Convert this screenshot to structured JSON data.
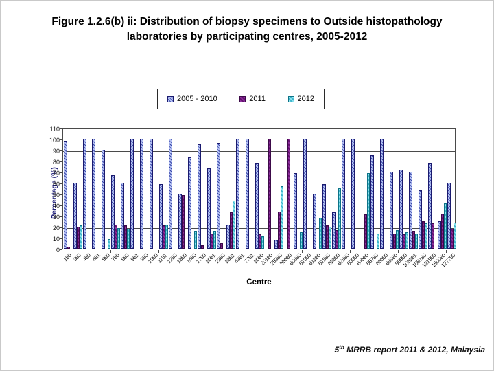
{
  "title": "Figure 1.2.6(b) ii: Distribution of biopsy specimens to Outside histopathology laboratories by participating centres, 2005-2012",
  "footer": {
    "prefix": "5",
    "sup": "th",
    "rest": " MRRB report 2011 & 2012, Malaysia"
  },
  "colors": {
    "series_2005_2010_light": "#b6c2f4",
    "series_2005_2010_dark": "#3a49a8",
    "series_2011": "#8d2f9c",
    "series_2012": "#8fe4f0",
    "axis": "#4a4a4a",
    "ylabel_text": "#1f1f7a"
  },
  "chart_data": {
    "type": "bar",
    "title": "Figure 1.2.6(b) ii: Distribution of biopsy specimens to Outside histopathology laboratories by participating centres, 2005-2012",
    "xlabel": "Centre",
    "ylabel": "Percentage (%)",
    "ylim": [
      0,
      110
    ],
    "ytick_step": 10,
    "gridlines_at": [
      20,
      90
    ],
    "grid": "partial-horizontal",
    "legend_position": "top-center-boxed",
    "categories": [
      "180",
      "380",
      "480",
      "481",
      "580",
      "780",
      "880",
      "981",
      "980",
      "1080",
      "1161",
      "1280",
      "1380",
      "1480",
      "1780",
      "2081",
      "2380",
      "2381",
      "4381",
      "7781",
      "2080",
      "20180",
      "25380",
      "55680",
      "60680",
      "61080",
      "61280",
      "61680",
      "62380",
      "62680",
      "63080",
      "64580",
      "65780",
      "66680",
      "66980",
      "96580",
      "106281",
      "108180",
      "121580",
      "150080",
      "127780"
    ],
    "series": [
      {
        "name": "2005 - 2010",
        "values": [
          98,
          60,
          100,
          100,
          90,
          67,
          60,
          100,
          100,
          100,
          59,
          100,
          50,
          83,
          95,
          73,
          96,
          22,
          100,
          100,
          78,
          0,
          8,
          0,
          69,
          100,
          50,
          59,
          33,
          100,
          100,
          0,
          85,
          100,
          70,
          72,
          70,
          53,
          78,
          25,
          60
        ]
      },
      {
        "name": "2011",
        "values": [
          2,
          20,
          0,
          0,
          0,
          22,
          21,
          0,
          0,
          0,
          21,
          0,
          49,
          0,
          3,
          14,
          5,
          33,
          0,
          0,
          13,
          100,
          34,
          100,
          0,
          0,
          0,
          21,
          17,
          0,
          0,
          31,
          0,
          0,
          14,
          13,
          16,
          25,
          23,
          32,
          18
        ]
      },
      {
        "name": "2012",
        "values": [
          0,
          21,
          0,
          0,
          9,
          19,
          18,
          0,
          0,
          0,
          22,
          0,
          0,
          16,
          0,
          16,
          0,
          44,
          0,
          0,
          11,
          0,
          57,
          0,
          15,
          0,
          28,
          20,
          55,
          0,
          0,
          69,
          14,
          0,
          17,
          15,
          14,
          23,
          0,
          41,
          24
        ]
      }
    ]
  }
}
